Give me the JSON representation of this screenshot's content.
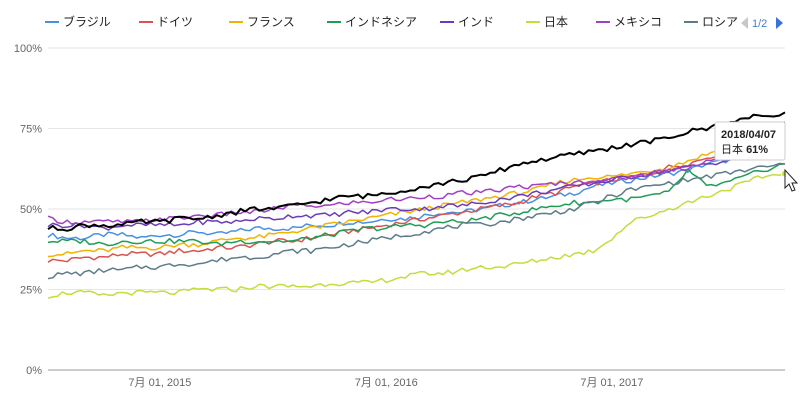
{
  "chart_data": {
    "type": "line",
    "x": [
      "2015-01-01",
      "2015-02-01",
      "2015-03-01",
      "2015-04-01",
      "2015-05-01",
      "2015-06-01",
      "2015-07-01",
      "2015-08-01",
      "2015-09-01",
      "2015-10-01",
      "2015-11-01",
      "2015-12-01",
      "2016-01-01",
      "2016-02-01",
      "2016-03-01",
      "2016-04-01",
      "2016-05-01",
      "2016-06-01",
      "2016-07-01",
      "2016-08-01",
      "2016-09-01",
      "2016-10-01",
      "2016-11-01",
      "2016-12-01",
      "2017-01-01",
      "2017-02-01",
      "2017-03-01",
      "2017-04-01",
      "2017-05-01",
      "2017-06-01",
      "2017-07-01",
      "2017-08-01",
      "2017-09-01",
      "2017-10-01",
      "2017-11-01",
      "2017-12-01",
      "2018-01-01",
      "2018-02-01",
      "2018-03-01",
      "2018-04-07"
    ],
    "xticks": [
      "7月 01, 2015",
      "7月 01, 2016",
      "7月 01, 2017"
    ],
    "ylim": [
      0,
      100
    ],
    "yticks": [
      "0%",
      "25%",
      "50%",
      "75%",
      "100%"
    ],
    "grid": true,
    "legend_position": "top",
    "series": [
      {
        "name": "ブラジル",
        "color": "#4a90e2",
        "values": [
          42,
          41,
          41,
          42,
          42,
          41,
          42,
          42,
          43,
          42,
          43,
          44,
          44,
          44,
          45,
          45,
          46,
          46,
          47,
          47,
          48,
          49,
          49,
          50,
          51,
          52,
          53,
          54,
          55,
          57,
          58,
          59,
          60,
          61,
          62,
          64,
          65,
          66,
          68,
          69
        ]
      },
      {
        "name": "ドイツ",
        "color": "#d9534f",
        "values": [
          34,
          34,
          35,
          35,
          36,
          36,
          36,
          37,
          37,
          38,
          38,
          39,
          40,
          40,
          41,
          42,
          43,
          44,
          45,
          46,
          47,
          48,
          49,
          50,
          51,
          52,
          54,
          55,
          57,
          58,
          59,
          60,
          61,
          63,
          64,
          66,
          68,
          70,
          72,
          77
        ]
      },
      {
        "name": "フランス",
        "color": "#f0b400",
        "values": [
          36,
          36,
          37,
          37,
          38,
          38,
          38,
          39,
          39,
          40,
          41,
          41,
          42,
          43,
          44,
          45,
          46,
          47,
          48,
          49,
          50,
          51,
          52,
          53,
          54,
          55,
          56,
          58,
          59,
          60,
          60,
          61,
          62,
          63,
          65,
          67,
          69,
          71,
          72,
          75
        ]
      },
      {
        "name": "インドネシア",
        "color": "#1f9d55",
        "values": [
          40,
          40,
          40,
          39,
          40,
          40,
          40,
          40,
          40,
          39,
          40,
          40,
          40,
          40,
          41,
          42,
          43,
          44,
          44,
          45,
          45,
          46,
          46,
          47,
          48,
          49,
          50,
          51,
          52,
          52,
          53,
          53,
          54,
          55,
          62,
          57,
          58,
          60,
          62,
          64
        ]
      },
      {
        "name": "インド",
        "color": "#6a3db8",
        "values": [
          45,
          45,
          45,
          44,
          45,
          45,
          45,
          45,
          46,
          46,
          46,
          47,
          47,
          48,
          48,
          48,
          49,
          49,
          50,
          50,
          50,
          51,
          51,
          52,
          53,
          54,
          55,
          56,
          57,
          58,
          59,
          60,
          61,
          62,
          63,
          64,
          65,
          66,
          67,
          68
        ]
      },
      {
        "name": "日本",
        "color": "#c5dc3c",
        "values": [
          23,
          24,
          24,
          23,
          24,
          24,
          24,
          24,
          25,
          25,
          25,
          26,
          26,
          26,
          26,
          27,
          27,
          27,
          28,
          29,
          30,
          30,
          31,
          32,
          32,
          33,
          34,
          35,
          36,
          37,
          41,
          46,
          48,
          50,
          52,
          54,
          56,
          58,
          60,
          61
        ]
      },
      {
        "name": "メキシコ",
        "color": "#a23fc6",
        "values": [
          47,
          46,
          46,
          46,
          46,
          46,
          47,
          47,
          48,
          48,
          49,
          49,
          50,
          51,
          51,
          51,
          52,
          52,
          53,
          53,
          54,
          54,
          55,
          55,
          56,
          57,
          57,
          58,
          58,
          59,
          59,
          60,
          61,
          62,
          63,
          65,
          66,
          68,
          70,
          72
        ]
      },
      {
        "name": "ロシア",
        "color": "#5d7c8a",
        "values": [
          29,
          30,
          30,
          31,
          31,
          32,
          32,
          33,
          33,
          34,
          35,
          35,
          36,
          37,
          37,
          38,
          39,
          40,
          41,
          42,
          43,
          44,
          45,
          45,
          46,
          47,
          48,
          49,
          50,
          52,
          54,
          56,
          57,
          58,
          59,
          60,
          61,
          62,
          63,
          64
        ]
      },
      {
        "color": "#000000",
        "values": [
          44,
          44,
          45,
          45,
          45,
          46,
          46,
          47,
          47,
          48,
          49,
          50,
          50,
          51,
          52,
          53,
          54,
          54,
          55,
          56,
          57,
          58,
          59,
          60,
          62,
          64,
          65,
          66,
          67,
          68,
          69,
          70,
          71,
          72,
          74,
          75,
          77,
          78,
          79,
          80
        ]
      }
    ]
  },
  "legend": {
    "items": [
      {
        "label": "ブラジル",
        "color": "#4a90e2"
      },
      {
        "label": "ドイツ",
        "color": "#d9534f"
      },
      {
        "label": "フランス",
        "color": "#f0b400"
      },
      {
        "label": "インドネシア",
        "color": "#1f9d55"
      },
      {
        "label": "インド",
        "color": "#6a3db8"
      },
      {
        "label": "日本",
        "color": "#c5dc3c"
      },
      {
        "label": "メキシコ",
        "color": "#a23fc6"
      },
      {
        "label": "ロシア",
        "color": "#5d7c8a"
      }
    ],
    "pager": "1/2"
  },
  "tooltip": {
    "date": "2018/04/07",
    "series": "日本",
    "value": "61%"
  }
}
